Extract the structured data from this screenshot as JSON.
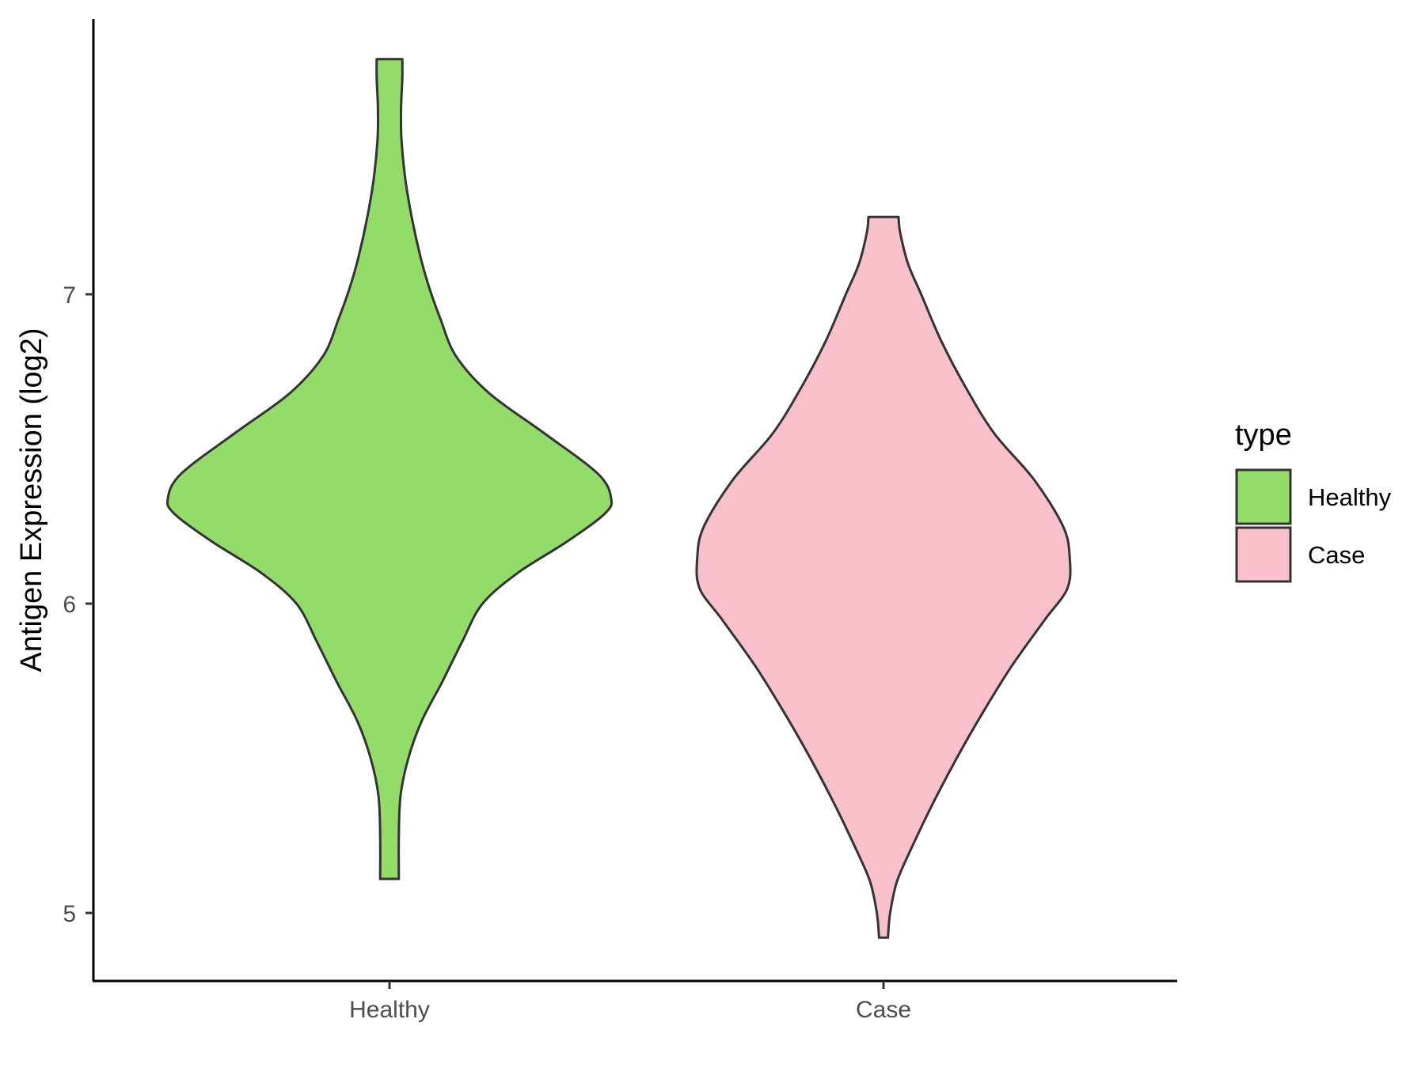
{
  "chart_data": {
    "type": "violin",
    "ylabel": "Antigen Expression (log2)",
    "xlabel": "",
    "categories": [
      "Healthy",
      "Case"
    ],
    "yticks": [
      5,
      6,
      7
    ],
    "ylim": [
      4.78,
      7.9
    ],
    "grid": false,
    "legend": {
      "title": "type",
      "position": "right",
      "entries": [
        {
          "label": "Healthy",
          "color": "#93dc6a"
        },
        {
          "label": "Case",
          "color": "#f8c0cb"
        }
      ]
    },
    "series": [
      {
        "name": "Healthy",
        "color": "#93dc6a",
        "range": [
          5.11,
          7.76
        ],
        "profile": [
          {
            "y": 5.11,
            "w": 0.042
          },
          {
            "y": 5.25,
            "w": 0.042
          },
          {
            "y": 5.38,
            "w": 0.05
          },
          {
            "y": 5.5,
            "w": 0.085
          },
          {
            "y": 5.62,
            "w": 0.145
          },
          {
            "y": 5.75,
            "w": 0.24
          },
          {
            "y": 5.88,
            "w": 0.33
          },
          {
            "y": 6.0,
            "w": 0.42
          },
          {
            "y": 6.1,
            "w": 0.58
          },
          {
            "y": 6.2,
            "w": 0.8
          },
          {
            "y": 6.29,
            "w": 0.97
          },
          {
            "y": 6.34,
            "w": 1.0
          },
          {
            "y": 6.42,
            "w": 0.94
          },
          {
            "y": 6.55,
            "w": 0.7
          },
          {
            "y": 6.68,
            "w": 0.45
          },
          {
            "y": 6.8,
            "w": 0.3
          },
          {
            "y": 6.92,
            "w": 0.23
          },
          {
            "y": 7.02,
            "w": 0.18
          },
          {
            "y": 7.12,
            "w": 0.14
          },
          {
            "y": 7.25,
            "w": 0.1
          },
          {
            "y": 7.38,
            "w": 0.07
          },
          {
            "y": 7.5,
            "w": 0.054
          },
          {
            "y": 7.6,
            "w": 0.052
          },
          {
            "y": 7.7,
            "w": 0.058
          },
          {
            "y": 7.76,
            "w": 0.058
          }
        ]
      },
      {
        "name": "Case",
        "color": "#f8c0cb",
        "range": [
          4.92,
          7.25
        ],
        "profile": [
          {
            "y": 4.92,
            "w": 0.02
          },
          {
            "y": 5.0,
            "w": 0.03
          },
          {
            "y": 5.1,
            "w": 0.06
          },
          {
            "y": 5.2,
            "w": 0.12
          },
          {
            "y": 5.35,
            "w": 0.22
          },
          {
            "y": 5.5,
            "w": 0.33
          },
          {
            "y": 5.65,
            "w": 0.45
          },
          {
            "y": 5.8,
            "w": 0.58
          },
          {
            "y": 5.95,
            "w": 0.73
          },
          {
            "y": 6.05,
            "w": 0.83
          },
          {
            "y": 6.15,
            "w": 0.84
          },
          {
            "y": 6.25,
            "w": 0.81
          },
          {
            "y": 6.4,
            "w": 0.68
          },
          {
            "y": 6.55,
            "w": 0.5
          },
          {
            "y": 6.7,
            "w": 0.37
          },
          {
            "y": 6.85,
            "w": 0.26
          },
          {
            "y": 7.0,
            "w": 0.17
          },
          {
            "y": 7.1,
            "w": 0.11
          },
          {
            "y": 7.2,
            "w": 0.075
          },
          {
            "y": 7.25,
            "w": 0.068
          }
        ]
      }
    ]
  }
}
